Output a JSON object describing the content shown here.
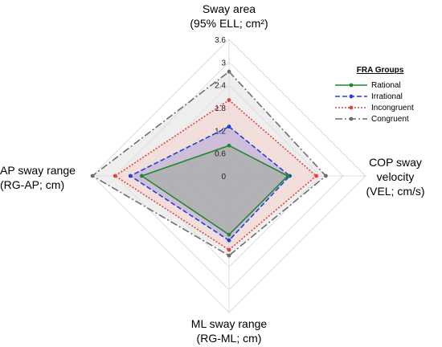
{
  "chart_data": {
    "type": "radar",
    "axes": [
      {
        "id": "top",
        "label_lines": [
          "Sway area",
          "(95% ELL; cm²)"
        ]
      },
      {
        "id": "right",
        "label_lines": [
          "COP sway",
          "velocity",
          "(VEL; cm/s)"
        ]
      },
      {
        "id": "bottom",
        "label_lines": [
          "ML sway range",
          "(RG-ML; cm)"
        ]
      },
      {
        "id": "left",
        "label_lines": [
          "AP sway range",
          "(RG-AP; cm)"
        ]
      }
    ],
    "radial_ticks": [
      "0",
      "0.6",
      "1.2",
      "1.8",
      "2.4",
      "3",
      "3.6"
    ],
    "rlim": [
      0,
      3.6
    ],
    "legend_title": "FRA Groups",
    "legend_position": "right",
    "series": [
      {
        "name": "Congruent",
        "values": [
          2.75,
          2.55,
          2.1,
          3.6
        ],
        "color": "#6e6e6e",
        "fill": "#e3e3e3",
        "dash": "9,3,2,3"
      },
      {
        "name": "Incongruent",
        "values": [
          2.0,
          2.3,
          1.95,
          3.0
        ],
        "color": "#e8413c",
        "fill": "#f5d3cf",
        "dash": "2,2"
      },
      {
        "name": "Irrational",
        "values": [
          1.3,
          1.6,
          1.7,
          2.6
        ],
        "color": "#1f3fd6",
        "fill": "#b7a8d9",
        "dash": "6,3"
      },
      {
        "name": "Rational",
        "values": [
          0.8,
          1.55,
          1.55,
          2.3
        ],
        "color": "#1e8a2e",
        "fill": "#9fa99c",
        "dash": ""
      }
    ],
    "legend_order": [
      "Rational",
      "Irrational",
      "Incongruent",
      "Congruent"
    ],
    "grid": true
  }
}
